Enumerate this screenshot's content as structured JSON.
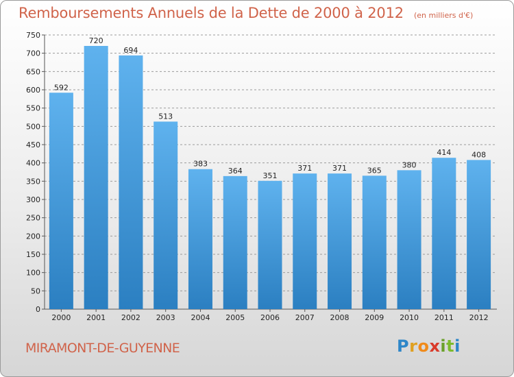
{
  "header": {
    "title": "Remboursements Annuels de la Dette de 2000 à 2012",
    "subtitle": "(en milliers d'€)"
  },
  "footer": {
    "city": "MIRAMONT-DE-GUYENNE",
    "brand_letters": [
      {
        "ch": "P",
        "color": "#2e86c8"
      },
      {
        "ch": "r",
        "color": "#e0a020"
      },
      {
        "ch": "o",
        "color": "#f08a1a"
      },
      {
        "ch": "x",
        "color": "#d93a2a"
      },
      {
        "ch": "i",
        "color": "#6aa02a"
      },
      {
        "ch": "t",
        "color": "#7cba2c"
      },
      {
        "ch": "i",
        "color": "#2e86c8"
      }
    ]
  },
  "colors": {
    "bar_top": "#5fb2ee",
    "bar_bottom": "#2b7fc1",
    "grid": "#9a9a9a",
    "axis_text": "#222222",
    "accent": "#d0634a"
  },
  "chart_data": {
    "type": "bar",
    "title": "Remboursements Annuels de la Dette de 2000 à 2012",
    "categories": [
      "2000",
      "2001",
      "2002",
      "2003",
      "2004",
      "2005",
      "2006",
      "2007",
      "2008",
      "2009",
      "2010",
      "2011",
      "2012"
    ],
    "values": [
      592,
      720,
      694,
      513,
      383,
      364,
      351,
      371,
      371,
      365,
      380,
      414,
      408
    ],
    "data_labels": [
      "592",
      "720",
      "694",
      "513",
      "383",
      "364",
      "351",
      "371",
      "371",
      "365",
      "380",
      "414",
      "408"
    ],
    "ylim": [
      0,
      750
    ],
    "yticks": [
      0,
      50,
      100,
      150,
      200,
      250,
      300,
      350,
      400,
      450,
      500,
      550,
      600,
      650,
      700,
      750
    ],
    "grid": "horizontal dashed",
    "xlabel": "",
    "ylabel": ""
  }
}
